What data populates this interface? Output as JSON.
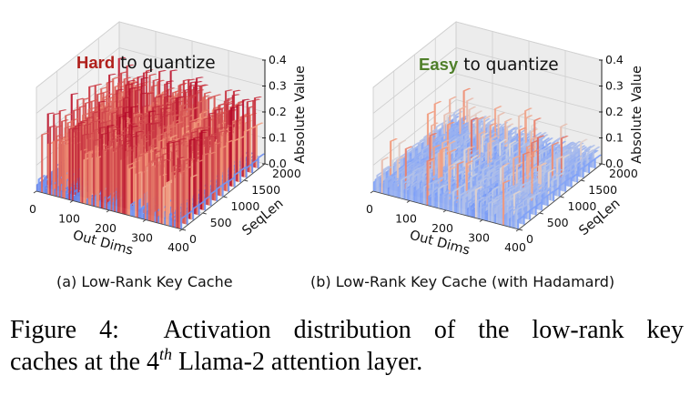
{
  "figure": {
    "caption_prefix": "Figure 4:",
    "caption_line1_rest": "Activation distribution of the low-rank key",
    "caption_line2_a": "caches at the 4",
    "caption_line2_sup": "th",
    "caption_line2_b": "Llama-2 attention layer."
  },
  "panels": [
    {
      "subcaption": "(a) Low-Rank Key Cache",
      "annotation_keyword": "Hard",
      "annotation_rest": "to quantize",
      "annotation_keyword_color": "#b0201c"
    },
    {
      "subcaption": "(b) Low-Rank Key Cache (with Hadamard)",
      "annotation_keyword": "Easy",
      "annotation_rest": "to quantize",
      "annotation_keyword_color": "#4f7f2a"
    }
  ],
  "chart_data": [
    {
      "type": "surface3d",
      "title": "(a) Low-Rank Key Cache",
      "annotation": "Hard to quantize",
      "xlabel": "Out Dims",
      "ylabel": "SeqLen",
      "zlabel": "Absolute Value",
      "xlim": [
        0,
        400
      ],
      "ylim": [
        0,
        2000
      ],
      "zlim": [
        0,
        0.4
      ],
      "xticks": [
        "0",
        "100",
        "200",
        "300",
        "400"
      ],
      "yticks": [
        "0",
        "500",
        "1000",
        "1500",
        "2000"
      ],
      "zticks": [
        "0.0",
        "0.1",
        "0.2",
        "0.3",
        "0.4"
      ],
      "colormap": "coolwarm",
      "grid": true,
      "description": "Many outlier channels along Out Dims with large absolute values (~0.2-0.3) persisting across all SeqLen; background channels near 0.02-0.05",
      "summary": {
        "outlier_channel_peak": 0.3,
        "outlier_channel_typical": 0.22,
        "background_typical": 0.04,
        "outlier_fraction": 0.55
      }
    },
    {
      "type": "surface3d",
      "title": "(b) Low-Rank Key Cache (with Hadamard)",
      "annotation": "Easy to quantize",
      "xlabel": "Out Dims",
      "ylabel": "SeqLen",
      "zlabel": "Absolute Value",
      "xlim": [
        0,
        400
      ],
      "ylim": [
        0,
        2000
      ],
      "zlim": [
        0,
        0.4
      ],
      "xticks": [
        "0",
        "100",
        "200",
        "300",
        "400"
      ],
      "yticks": [
        "0",
        "500",
        "1000",
        "1500",
        "2000"
      ],
      "zticks": [
        "0.0",
        "0.1",
        "0.2",
        "0.3",
        "0.4"
      ],
      "colormap": "coolwarm",
      "grid": true,
      "description": "Activations evenly spread after Hadamard rotation; mostly low values (~0.03-0.08) with sparse mild peaks up to ~0.15",
      "summary": {
        "peak": 0.15,
        "typical": 0.05,
        "outlier_fraction": 0.0
      }
    }
  ]
}
